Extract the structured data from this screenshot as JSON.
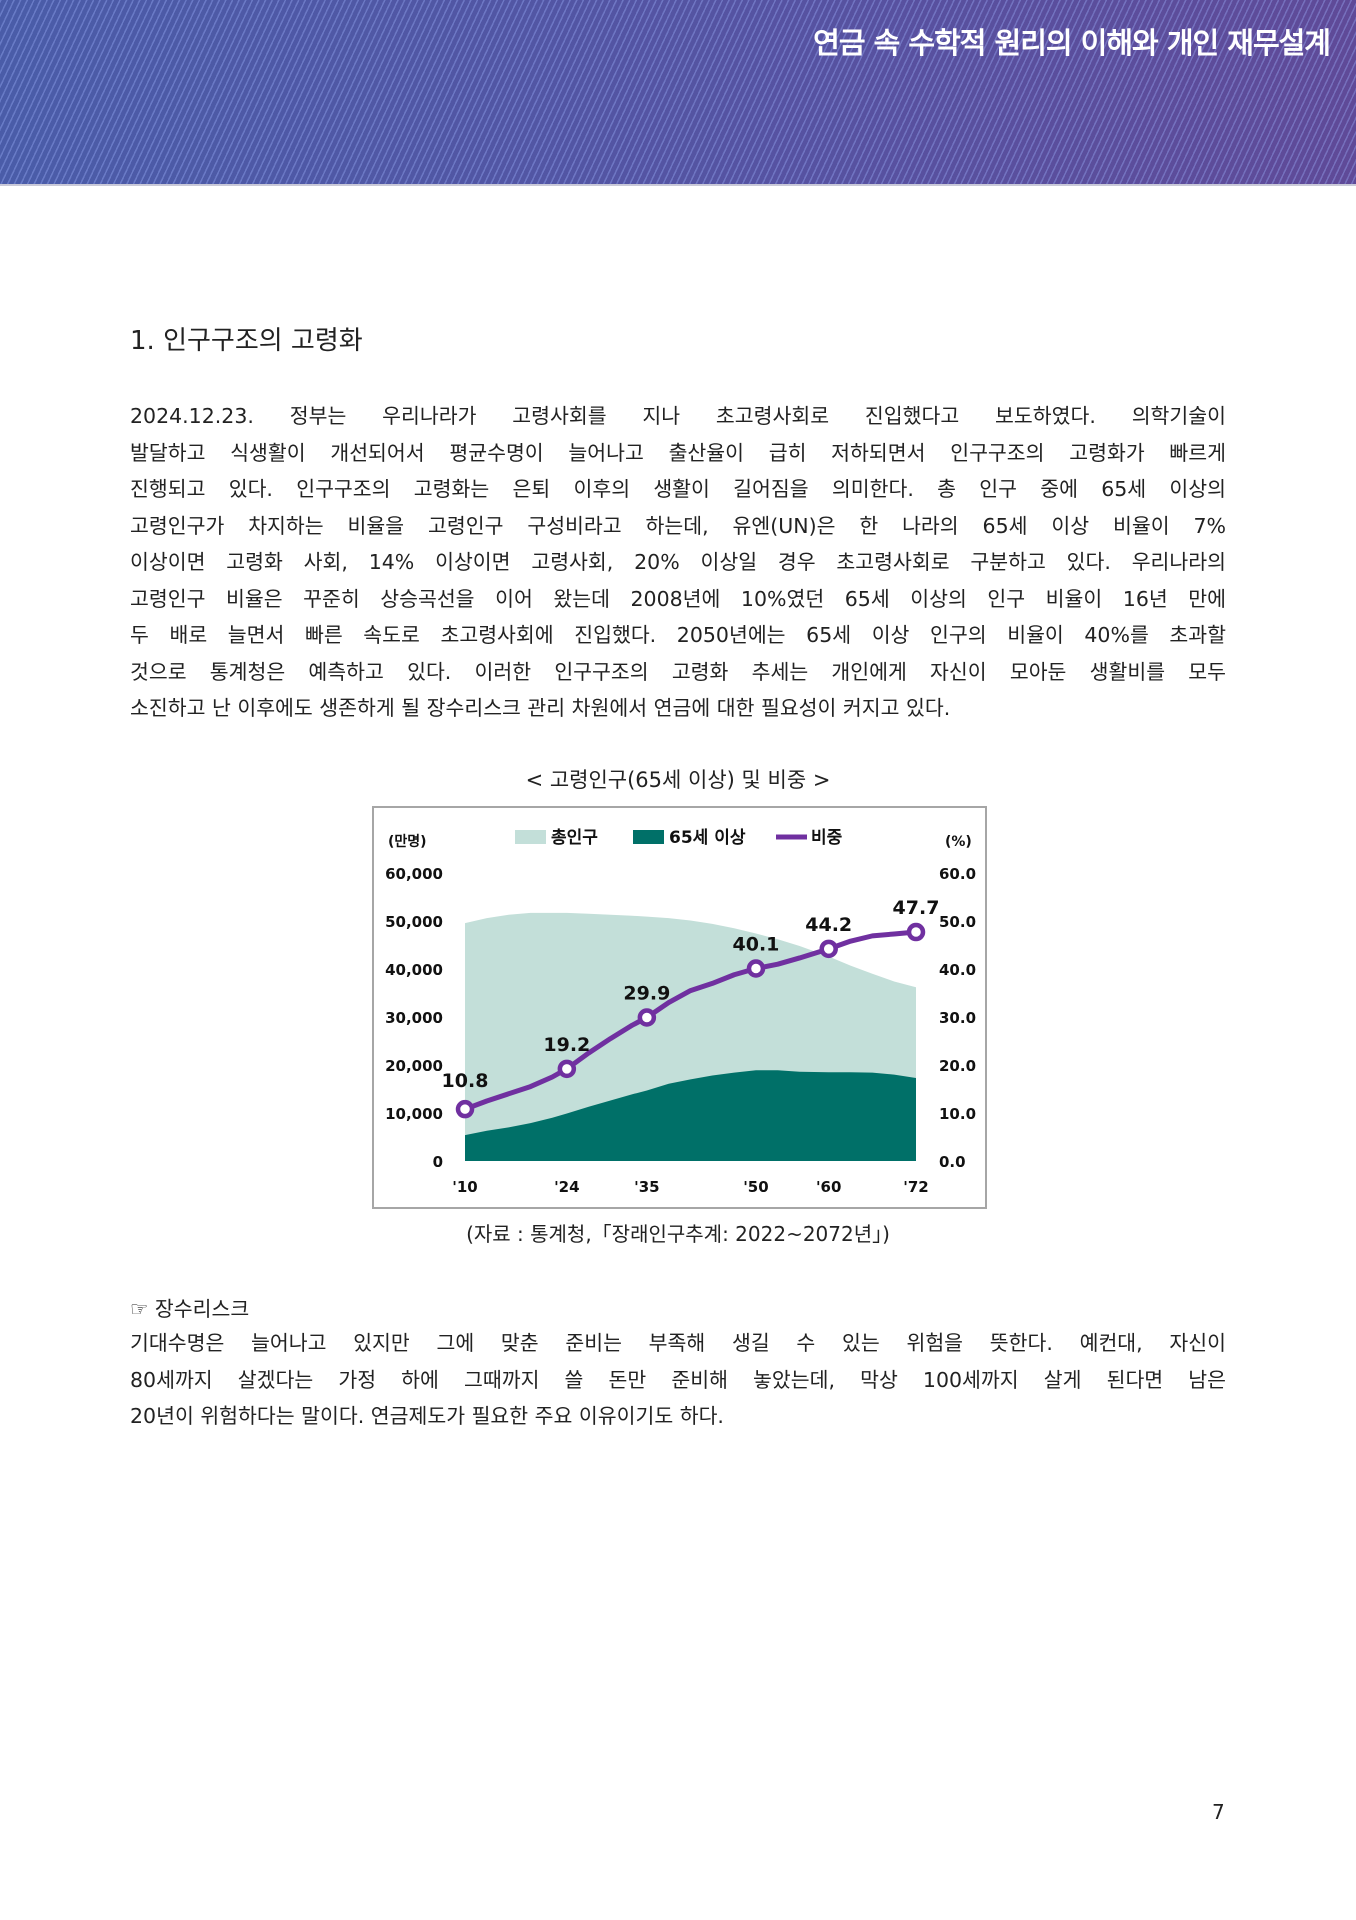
{
  "header": {
    "title": "연금 속 수학적 원리의 이해와 개인 재무설계",
    "colors": {
      "left": "#4a5ca8",
      "right": "#5f4a98"
    }
  },
  "section": {
    "heading": "1. 인구구조의 고령화",
    "paragraph_lines": [
      " 2024.12.23. 정부는 우리나라가 고령사회를 지나 초고령사회로 진입했다고 보도하였다. 의학기술이",
      "발달하고 식생활이 개선되어서 평균수명이 늘어나고 출산율이 급히 저하되면서 인구구조의 고령화가 빠르게",
      "진행되고 있다. 인구구조의 고령화는 은퇴 이후의 생활이 길어짐을 의미한다. 총 인구 중에 65세 이상의",
      "고령인구가 차지하는 비율을 고령인구 구성비라고 하는데, 유엔(UN)은 한 나라의 65세 이상 비율이 7%",
      "이상이면 고령화 사회, 14% 이상이면 고령사회, 20% 이상일 경우 초고령사회로 구분하고 있다. 우리나라의",
      "고령인구 비율은 꾸준히 상승곡선을 이어 왔는데 2008년에 10%였던 65세 이상의 인구 비율이 16년 만에",
      "두 배로 늘면서 빠른 속도로 초고령사회에 진입했다. 2050년에는 65세 이상 인구의 비율이 40%를 초과할",
      "것으로 통계청은 예측하고 있다. 이러한 인구구조의 고령화 추세는 개인에게 자신이 모아둔 생활비를 모두",
      "소진하고 난 이후에도 생존하게 될 장수리스크 관리 차원에서 연금에 대한 필요성이 커지고 있다."
    ]
  },
  "figure": {
    "title": "< 고령인구(65세 이상) 및 비중 >",
    "source": "(자료 : 통계청,「장래인구추계: 2022~2072년」)"
  },
  "chart_data": {
    "type": "area",
    "title": "고령인구(65세 이상) 및 비중",
    "left_axis_unit": "(만명)",
    "right_axis_unit": "(%)",
    "left_ylim": [
      0,
      60000
    ],
    "right_ylim": [
      0,
      60
    ],
    "left_ticks": [
      "0",
      "10,000",
      "20,000",
      "30,000",
      "40,000",
      "50,000",
      "60,000"
    ],
    "right_ticks": [
      "0.0",
      "10.0",
      "20.0",
      "30.0",
      "40.0",
      "50.0",
      "60.0"
    ],
    "x_tick_labels": [
      {
        "year": 2010,
        "label": "'10"
      },
      {
        "year": 2024,
        "label": "'24"
      },
      {
        "year": 2035,
        "label": "'35"
      },
      {
        "year": 2050,
        "label": "'50"
      },
      {
        "year": 2060,
        "label": "'60"
      },
      {
        "year": 2072,
        "label": "'72"
      }
    ],
    "legend": [
      "총인구",
      "65세 이상",
      "비중"
    ],
    "legend_position": "top",
    "colors": {
      "total": "#c3dfd9",
      "elderly": "#007068",
      "ratio": "#7030a0"
    },
    "years": [
      2010,
      2013,
      2016,
      2019,
      2022,
      2024,
      2027,
      2030,
      2033,
      2035,
      2038,
      2041,
      2044,
      2047,
      2050,
      2053,
      2056,
      2060,
      2063,
      2066,
      2069,
      2072
    ],
    "series": [
      {
        "name": "총인구",
        "values": [
          4955,
          5060,
          5130,
          5170,
          5170,
          5170,
          5150,
          5130,
          5110,
          5090,
          5060,
          5010,
          4940,
          4850,
          4740,
          4620,
          4480,
          4260,
          4070,
          3900,
          3740,
          3620
        ]
      },
      {
        "name": "65세 이상",
        "values": [
          540,
          630,
          700,
          790,
          900,
          990,
          1130,
          1260,
          1390,
          1470,
          1610,
          1700,
          1780,
          1840,
          1890,
          1890,
          1860,
          1850,
          1850,
          1840,
          1800,
          1730
        ]
      },
      {
        "name": "비중",
        "values": [
          10.8,
          12.5,
          14.0,
          15.5,
          17.5,
          19.2,
          22.5,
          25.5,
          28.3,
          29.9,
          33.0,
          35.5,
          37.0,
          38.8,
          40.1,
          41.0,
          42.3,
          44.2,
          45.8,
          46.9,
          47.3,
          47.7
        ]
      }
    ],
    "labeled_points": [
      {
        "year": 2010,
        "value": "10.8"
      },
      {
        "year": 2024,
        "value": "19.2"
      },
      {
        "year": 2035,
        "value": "29.9"
      },
      {
        "year": 2050,
        "value": "40.1"
      },
      {
        "year": 2060,
        "value": "44.2"
      },
      {
        "year": 2072,
        "value": "47.7"
      }
    ]
  },
  "note": {
    "title": "☞ 장수리스크",
    "lines": [
      " 기대수명은 늘어나고 있지만 그에 맞춘 준비는 부족해 생길 수 있는 위험을 뜻한다. 예컨대, 자신이",
      "80세까지 살겠다는 가정 하에 그때까지 쓸 돈만 준비해 놓았는데, 막상 100세까지 살게 된다면 남은",
      "20년이 위험하다는 말이다. 연금제도가 필요한 주요 이유이기도 하다."
    ]
  },
  "page_number": "7"
}
